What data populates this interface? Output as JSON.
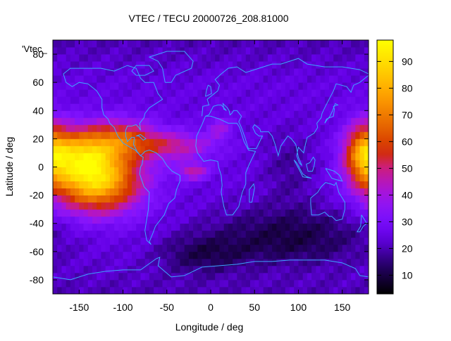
{
  "chart_data": {
    "type": "heatmap",
    "title": "VTEC / TECU 20000726_208.81000",
    "xlabel": "Longitude / deg",
    "ylabel": "Latitude / deg",
    "key_label": "'Vtec_",
    "xlim": [
      -180,
      180
    ],
    "ylim": [
      -90,
      90
    ],
    "x_ticks": [
      -150,
      -100,
      -50,
      0,
      50,
      100,
      150
    ],
    "y_ticks": [
      -80,
      -60,
      -40,
      -20,
      0,
      20,
      40,
      60,
      80
    ],
    "colorbar": {
      "min": 3,
      "max": 98,
      "ticks": [
        10,
        20,
        30,
        40,
        50,
        60,
        70,
        80,
        90
      ]
    },
    "grid_resolution_deg": [
      5,
      5
    ],
    "field_features": [
      {
        "lon": -130,
        "lat": -10,
        "dlon": 50,
        "dlat": 22,
        "value": 60
      },
      {
        "lon": -150,
        "lat": 10,
        "dlon": 40,
        "dlat": 18,
        "value": 40
      },
      {
        "lon": -100,
        "lat": 20,
        "dlon": 40,
        "dlat": 14,
        "value": 30
      },
      {
        "lon": -40,
        "lat": 15,
        "dlon": 45,
        "dlat": 10,
        "value": 22
      },
      {
        "lon": -20,
        "lat": -3,
        "dlon": 18,
        "dlat": 6,
        "value": 22
      },
      {
        "lon": 10,
        "lat": 28,
        "dlon": 14,
        "dlat": 8,
        "value": 14
      },
      {
        "lon": 175,
        "lat": 10,
        "dlon": 22,
        "dlat": 22,
        "value": 40
      },
      {
        "lon": 90,
        "lat": -50,
        "dlon": 90,
        "dlat": 22,
        "value": -14
      },
      {
        "lon": -10,
        "lat": -65,
        "dlon": 50,
        "dlat": 16,
        "value": -12
      },
      {
        "lon": 90,
        "lat": 0,
        "dlon": 30,
        "dlat": 25,
        "value": -6
      }
    ],
    "background_value": 24,
    "polar_value": 20,
    "colormap": "black-blue-purple-red-orange-yellow"
  }
}
